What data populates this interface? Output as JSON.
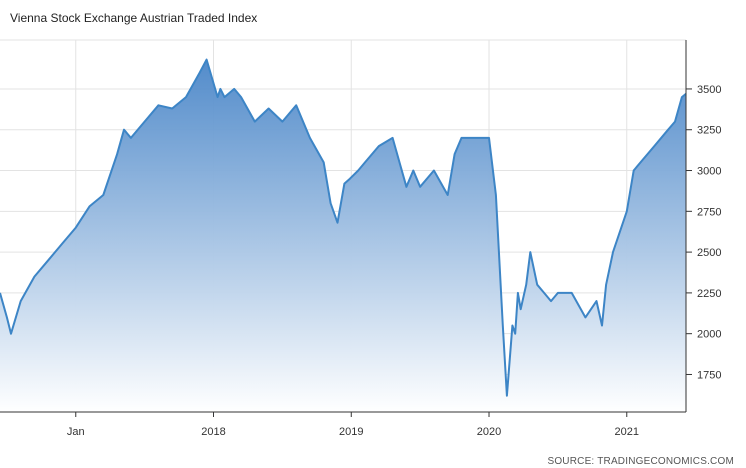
{
  "chart_data": {
    "type": "area",
    "title": "Vienna Stock Exchange Austrian Traded Index",
    "source": "SOURCE: TRADINGECONOMICS.COM",
    "xlabel": "",
    "ylabel": "",
    "x_tick_labels": [
      {
        "label": "Jan",
        "value": 2017.0
      },
      {
        "label": "2018",
        "value": 2018.0
      },
      {
        "label": "2019",
        "value": 2019.0
      },
      {
        "label": "2020",
        "value": 2020.0
      },
      {
        "label": "2021",
        "value": 2021.0
      }
    ],
    "y_ticks": [
      1750,
      2000,
      2250,
      2500,
      2750,
      3000,
      3250,
      3500
    ],
    "xlim": [
      2016.45,
      2021.43
    ],
    "ylim": [
      1520,
      3800
    ],
    "grid": true,
    "y_axis_side": "right",
    "colors": {
      "line": "#3d85c6",
      "fill_top": "#4a86c8",
      "fill_bottom": "#ffffff",
      "grid": "#e3e3e3"
    },
    "series": [
      {
        "x": [
          2016.45,
          2016.5,
          2016.53,
          2016.6,
          2016.7,
          2016.8,
          2016.9,
          2017.0,
          2017.1,
          2017.2,
          2017.3,
          2017.35,
          2017.4,
          2017.5,
          2017.6,
          2017.7,
          2017.8,
          2017.9,
          2017.95,
          2018.03,
          2018.05,
          2018.08,
          2018.15,
          2018.2,
          2018.3,
          2018.4,
          2018.5,
          2018.6,
          2018.7,
          2018.8,
          2018.85,
          2018.9,
          2018.95,
          2018.99,
          2019.05,
          2019.1,
          2019.2,
          2019.3,
          2019.35,
          2019.4,
          2019.45,
          2019.5,
          2019.6,
          2019.7,
          2019.75,
          2019.8,
          2019.9,
          2020.0,
          2020.05,
          2020.1,
          2020.13,
          2020.17,
          2020.19,
          2020.21,
          2020.23,
          2020.27,
          2020.3,
          2020.35,
          2020.4,
          2020.45,
          2020.5,
          2020.6,
          2020.7,
          2020.78,
          2020.82,
          2020.85,
          2020.9,
          2021.0,
          2021.05,
          2021.1,
          2021.2,
          2021.3,
          2021.35,
          2021.4,
          2021.43
        ],
        "y": [
          2250,
          2100,
          2000,
          2200,
          2350,
          2450,
          2550,
          2650,
          2780,
          2850,
          3100,
          3250,
          3200,
          3300,
          3400,
          3380,
          3450,
          3600,
          3680,
          3450,
          3500,
          3450,
          3500,
          3450,
          3300,
          3380,
          3300,
          3400,
          3200,
          3050,
          2800,
          2680,
          2920,
          2950,
          3000,
          3050,
          3150,
          3200,
          3050,
          2900,
          3000,
          2900,
          3000,
          2850,
          3100,
          3200,
          3200,
          3200,
          2850,
          2050,
          1620,
          2050,
          2000,
          2250,
          2150,
          2300,
          2500,
          2300,
          2250,
          2200,
          2250,
          2250,
          2100,
          2200,
          2050,
          2300,
          2500,
          2750,
          3000,
          3050,
          3150,
          3250,
          3300,
          3450,
          3470
        ]
      }
    ]
  }
}
